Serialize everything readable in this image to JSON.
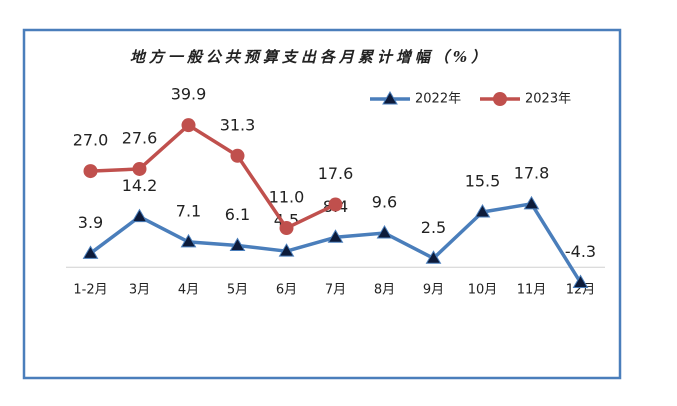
{
  "chart_data": {
    "type": "line",
    "title": "地方一般公共预算支出各月累计增幅（%）",
    "categories": [
      "1-2月",
      "3月",
      "4月",
      "5月",
      "6月",
      "7月",
      "8月",
      "9月",
      "10月",
      "11月",
      "12月"
    ],
    "series": [
      {
        "name": "2022年",
        "color": "#4a7ebb",
        "marker": "triangle",
        "values": [
          3.9,
          14.2,
          7.1,
          6.1,
          4.5,
          8.4,
          9.6,
          2.5,
          15.5,
          17.8,
          -4.3
        ]
      },
      {
        "name": "2023年",
        "color": "#c0504d",
        "marker": "circle",
        "values": [
          27.0,
          27.6,
          39.9,
          31.3,
          11.0,
          17.6,
          null,
          null,
          null,
          null,
          null
        ],
        "value_labels": [
          "27.0",
          "27.6",
          "39.9",
          "31.3",
          "11.0",
          "17.6",
          null,
          null,
          null,
          null,
          null
        ]
      }
    ],
    "ylim": [
      -5,
      45
    ],
    "legend": "top-right"
  }
}
